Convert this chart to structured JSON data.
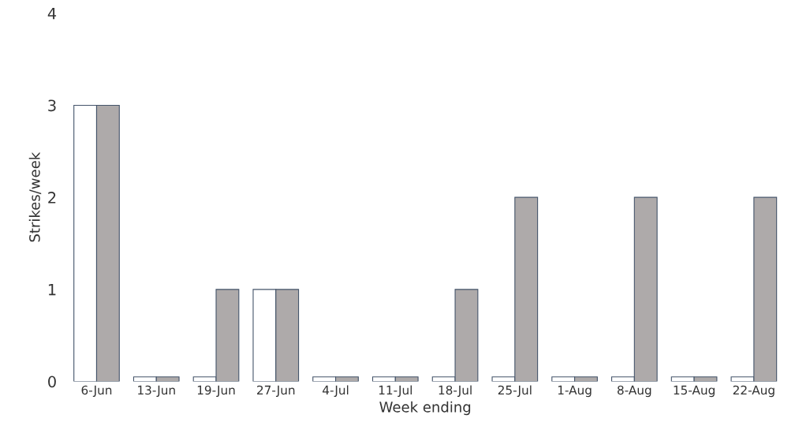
{
  "chart_data": {
    "type": "bar",
    "xlabel": "Week ending",
    "ylabel": "Strikes/week",
    "categories": [
      "6-Jun",
      "13-Jun",
      "19-Jun",
      "27-Jun",
      "4-Jul",
      "11-Jul",
      "18-Jul",
      "25-Jul",
      "1-Aug",
      "8-Aug",
      "15-Aug",
      "22-Aug"
    ],
    "series": [
      {
        "color": "#ffffff",
        "values": [
          3,
          0.05,
          0.05,
          1,
          0.05,
          0.05,
          0.05,
          0.05,
          0.05,
          0.05,
          0.05,
          0.05
        ]
      },
      {
        "color": "#aeaaaa",
        "values": [
          3,
          0.05,
          1,
          1,
          0.05,
          0.05,
          1,
          2,
          0.05,
          2,
          0.05,
          2
        ]
      }
    ],
    "ylim": [
      0,
      4
    ],
    "yticks": [
      0,
      1,
      2,
      3,
      4
    ],
    "grid": false,
    "legend": false
  }
}
